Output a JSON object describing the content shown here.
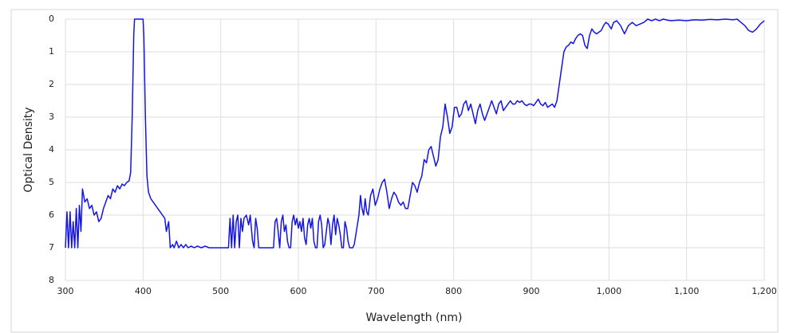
{
  "chart_data": {
    "type": "line",
    "x_label": "Wavelength (nm)",
    "y_label": "Optical Density",
    "color": "#1414e6",
    "grid": true,
    "y_inverted": true,
    "xlim": [
      300,
      1200
    ],
    "xticks": [
      300,
      400,
      500,
      600,
      700,
      800,
      900,
      {
        "value": 1000,
        "label": "1,000"
      },
      {
        "value": 1100,
        "label": "1,100"
      },
      {
        "value": 1200,
        "label": "1,200"
      }
    ],
    "ylim": [
      0,
      8
    ],
    "yticks": [
      0,
      1,
      2,
      3,
      4,
      5,
      6,
      7,
      8
    ],
    "x": [
      300,
      302,
      304,
      306,
      308,
      310,
      312,
      314,
      316,
      318,
      320,
      322,
      325,
      328,
      331,
      334,
      337,
      340,
      343,
      346,
      349,
      352,
      355,
      358,
      361,
      364,
      367,
      370,
      373,
      376,
      379,
      382,
      384,
      386,
      388,
      389,
      400,
      401,
      403,
      405,
      407,
      410,
      413,
      416,
      419,
      422,
      425,
      428,
      430,
      433,
      435,
      438,
      440,
      443,
      446,
      449,
      452,
      455,
      458,
      462,
      466,
      470,
      475,
      480,
      485,
      490,
      500,
      510,
      512,
      514,
      516,
      518,
      520,
      522,
      524,
      526,
      528,
      530,
      533,
      536,
      538,
      541,
      543,
      545,
      547,
      549,
      555,
      560,
      568,
      570,
      572,
      574,
      576,
      578,
      580,
      582,
      584,
      586,
      588,
      590,
      592,
      594,
      596,
      598,
      600,
      602,
      604,
      606,
      608,
      610,
      612,
      614,
      616,
      618,
      620,
      622,
      624,
      626,
      628,
      630,
      632,
      634,
      636,
      638,
      640,
      642,
      644,
      646,
      648,
      650,
      652,
      654,
      656,
      658,
      660,
      662,
      664,
      666,
      668,
      670,
      672,
      674,
      676,
      678,
      680,
      682,
      684,
      686,
      688,
      690,
      693,
      696,
      699,
      702,
      705,
      708,
      711,
      714,
      717,
      720,
      723,
      726,
      729,
      732,
      735,
      738,
      741,
      744,
      747,
      750,
      753,
      756,
      759,
      762,
      765,
      768,
      771,
      774,
      777,
      780,
      783,
      786,
      789,
      792,
      795,
      798,
      801,
      804,
      807,
      810,
      813,
      816,
      819,
      822,
      825,
      828,
      831,
      834,
      837,
      840,
      843,
      846,
      849,
      852,
      855,
      858,
      861,
      864,
      867,
      870,
      873,
      876,
      879,
      882,
      885,
      888,
      891,
      894,
      897,
      900,
      903,
      906,
      909,
      912,
      915,
      918,
      921,
      924,
      927,
      930,
      933,
      936,
      939,
      942,
      945,
      948,
      951,
      954,
      957,
      960,
      963,
      966,
      969,
      972,
      975,
      978,
      981,
      984,
      987,
      990,
      993,
      996,
      999,
      1003,
      1006,
      1010,
      1015,
      1020,
      1025,
      1030,
      1035,
      1040,
      1045,
      1050,
      1055,
      1060,
      1065,
      1070,
      1075,
      1080,
      1090,
      1100,
      1110,
      1120,
      1130,
      1140,
      1150,
      1160,
      1165,
      1170,
      1175,
      1180,
      1185,
      1190,
      1195,
      1200
    ],
    "values": [
      7,
      5.9,
      7,
      5.9,
      7,
      6.2,
      7,
      5.8,
      7,
      5.7,
      6.5,
      5.2,
      5.6,
      5.5,
      5.8,
      5.7,
      6.0,
      5.9,
      6.2,
      6.1,
      5.8,
      5.6,
      5.4,
      5.5,
      5.2,
      5.3,
      5.1,
      5.2,
      5.05,
      5.1,
      5.0,
      4.95,
      4.7,
      3,
      0.5,
      0,
      0,
      0.5,
      3,
      4.8,
      5.3,
      5.5,
      5.6,
      5.7,
      5.8,
      5.9,
      6.0,
      6.1,
      6.5,
      6.2,
      7,
      6.9,
      7,
      6.8,
      7,
      6.9,
      7,
      6.9,
      7,
      6.95,
      7,
      6.95,
      7,
      6.95,
      7,
      7,
      7,
      7,
      6.1,
      7,
      6.0,
      7,
      6.2,
      6.0,
      7,
      6.1,
      6.5,
      6.1,
      6.0,
      6.3,
      6.0,
      6.8,
      7,
      6.1,
      6.4,
      7,
      7,
      7,
      7,
      6.2,
      6.1,
      6.5,
      7,
      6.2,
      6.0,
      6.5,
      6.3,
      6.8,
      7,
      7,
      6.2,
      6.0,
      6.3,
      6.1,
      6.4,
      6.2,
      6.5,
      6.1,
      6.7,
      6.9,
      6.3,
      6.1,
      6.4,
      6.1,
      6.8,
      7,
      7,
      6.2,
      6.0,
      6.3,
      7,
      6.9,
      6.5,
      6.1,
      6.3,
      6.9,
      6.3,
      6.0,
      6.6,
      6.1,
      6.3,
      6.6,
      7,
      7,
      6.2,
      6.4,
      6.8,
      7,
      7,
      7,
      6.9,
      6.6,
      6.3,
      6.0,
      5.4,
      5.8,
      6.0,
      5.5,
      5.9,
      6.0,
      5.4,
      5.2,
      5.7,
      5.5,
      5.2,
      5.0,
      4.9,
      5.3,
      5.8,
      5.5,
      5.3,
      5.4,
      5.6,
      5.7,
      5.6,
      5.8,
      5.8,
      5.4,
      5.0,
      5.1,
      5.3,
      5.0,
      4.8,
      4.3,
      4.4,
      4.0,
      3.9,
      4.2,
      4.5,
      4.3,
      3.6,
      3.3,
      2.6,
      3.0,
      3.5,
      3.3,
      2.7,
      2.7,
      3.0,
      2.9,
      2.6,
      2.5,
      2.8,
      2.6,
      2.9,
      3.2,
      2.8,
      2.6,
      2.9,
      3.1,
      2.9,
      2.7,
      2.5,
      2.7,
      2.9,
      2.6,
      2.5,
      2.8,
      2.7,
      2.6,
      2.5,
      2.6,
      2.6,
      2.5,
      2.55,
      2.5,
      2.6,
      2.65,
      2.6,
      2.6,
      2.65,
      2.55,
      2.45,
      2.6,
      2.65,
      2.55,
      2.7,
      2.65,
      2.6,
      2.7,
      2.5,
      2.0,
      1.5,
      1.0,
      0.85,
      0.8,
      0.7,
      0.75,
      0.6,
      0.5,
      0.45,
      0.5,
      0.8,
      0.9,
      0.5,
      0.3,
      0.4,
      0.45,
      0.4,
      0.35,
      0.2,
      0.1,
      0.15,
      0.3,
      0.1,
      0.05,
      0.2,
      0.45,
      0.2,
      0.1,
      0.2,
      0.15,
      0.1,
      0.0,
      0.05,
      0.0,
      0.05,
      0.0,
      0.03,
      0.05,
      0.03,
      0.05,
      0.02,
      0.03,
      0.01,
      0.02,
      0.0,
      0.02,
      0.0,
      0.1,
      0.2,
      0.35,
      0.4,
      0.3,
      0.15,
      0.05
    ]
  }
}
